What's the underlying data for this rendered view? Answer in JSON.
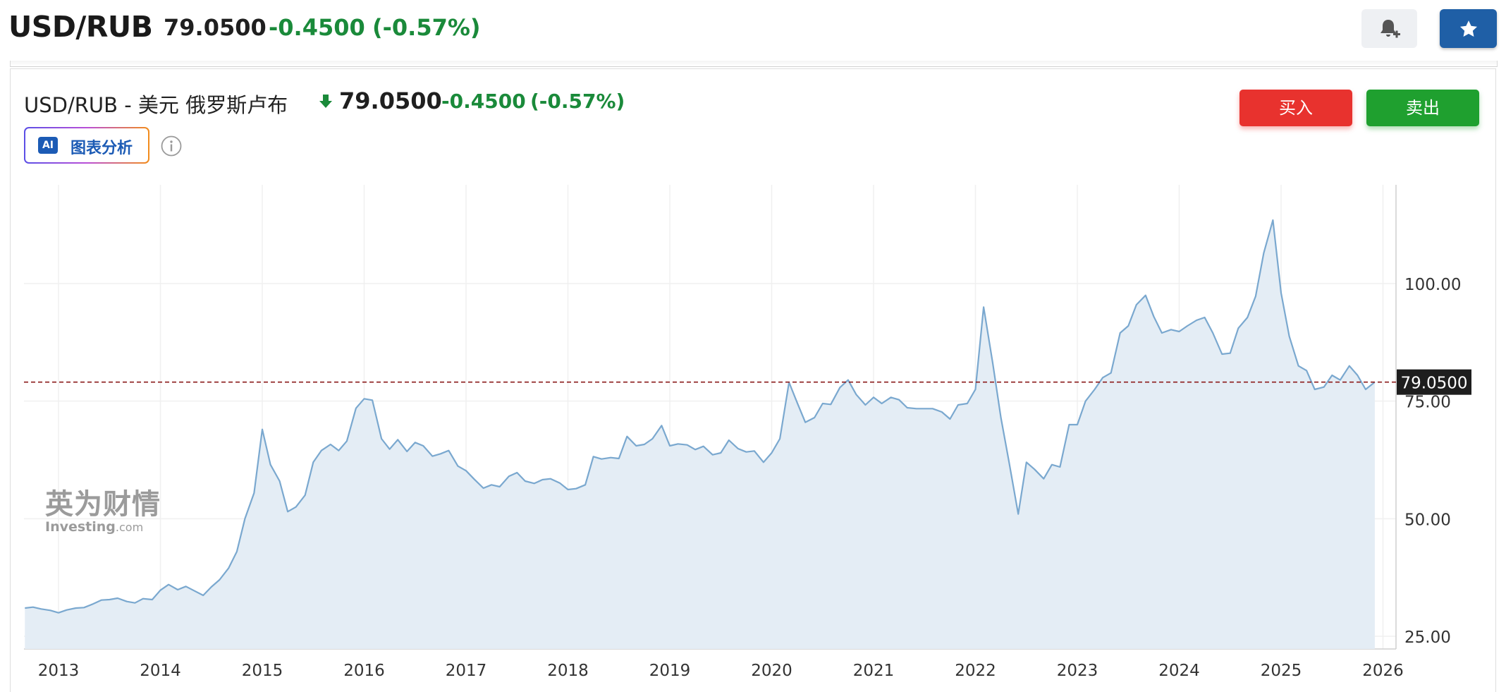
{
  "header": {
    "symbol": "USD/RUB",
    "price": "79.0500",
    "change": "-0.4500",
    "change_pct": "(-0.57%)"
  },
  "panel": {
    "title": "USD/RUB - 美元 俄罗斯卢布",
    "price": "79.0500",
    "change": "-0.4500",
    "change_pct": "(-0.57%)",
    "buy_label": "买入",
    "sell_label": "卖出",
    "ai_badge": "AI",
    "ai_label": "图表分析"
  },
  "watermark": {
    "line1": "英为财情",
    "line2": "Investing",
    "line2_suffix": ".com"
  },
  "colors": {
    "up_green": "#1a8a3a",
    "buy_red": "#e8322e",
    "sell_green": "#1fa02f",
    "star_blue": "#1f5fa6",
    "line": "#7aa8cf",
    "area": "#e4edf5"
  },
  "icons": {
    "bell": "bell-plus-icon",
    "star": "star-icon",
    "arrow": "arrow-down-icon",
    "info": "info-icon"
  },
  "chart_data": {
    "type": "area",
    "y_ticks": [
      "100.00",
      "75.00",
      "50.00",
      "25.00"
    ],
    "x_ticks": [
      "2013",
      "2014",
      "2015",
      "2016",
      "2017",
      "2018",
      "2019",
      "2020",
      "2021",
      "2022",
      "2023",
      "2024",
      "2025",
      "2026"
    ],
    "ylim": [
      22.5,
      120
    ],
    "current_value": 79.05,
    "current_label": "79.0500",
    "series": [
      {
        "points": [
          [
            2012.67,
            31.0
          ],
          [
            2012.75,
            31.2
          ],
          [
            2012.83,
            30.8
          ],
          [
            2012.92,
            30.5
          ],
          [
            2013.0,
            30.0
          ],
          [
            2013.08,
            30.6
          ],
          [
            2013.17,
            31.0
          ],
          [
            2013.25,
            31.1
          ],
          [
            2013.33,
            31.8
          ],
          [
            2013.42,
            32.7
          ],
          [
            2013.5,
            32.8
          ],
          [
            2013.58,
            33.1
          ],
          [
            2013.67,
            32.4
          ],
          [
            2013.75,
            32.1
          ],
          [
            2013.83,
            33.0
          ],
          [
            2013.92,
            32.8
          ],
          [
            2014.0,
            34.8
          ],
          [
            2014.08,
            36.0
          ],
          [
            2014.17,
            34.9
          ],
          [
            2014.25,
            35.6
          ],
          [
            2014.33,
            34.7
          ],
          [
            2014.42,
            33.7
          ],
          [
            2014.5,
            35.5
          ],
          [
            2014.58,
            37.0
          ],
          [
            2014.67,
            39.5
          ],
          [
            2014.75,
            43.0
          ],
          [
            2014.83,
            50.0
          ],
          [
            2014.92,
            55.5
          ],
          [
            2015.0,
            69.0
          ],
          [
            2015.08,
            61.5
          ],
          [
            2015.17,
            58.0
          ],
          [
            2015.25,
            51.5
          ],
          [
            2015.33,
            52.5
          ],
          [
            2015.42,
            55.0
          ],
          [
            2015.5,
            62.0
          ],
          [
            2015.58,
            64.5
          ],
          [
            2015.67,
            65.8
          ],
          [
            2015.75,
            64.5
          ],
          [
            2015.83,
            66.5
          ],
          [
            2015.92,
            73.5
          ],
          [
            2016.0,
            75.5
          ],
          [
            2016.08,
            75.2
          ],
          [
            2016.17,
            67.0
          ],
          [
            2016.25,
            64.8
          ],
          [
            2016.33,
            66.8
          ],
          [
            2016.42,
            64.3
          ],
          [
            2016.5,
            66.2
          ],
          [
            2016.58,
            65.5
          ],
          [
            2016.67,
            63.3
          ],
          [
            2016.75,
            63.8
          ],
          [
            2016.83,
            64.5
          ],
          [
            2016.92,
            61.2
          ],
          [
            2017.0,
            60.2
          ],
          [
            2017.08,
            58.4
          ],
          [
            2017.17,
            56.5
          ],
          [
            2017.25,
            57.2
          ],
          [
            2017.33,
            56.8
          ],
          [
            2017.42,
            59.0
          ],
          [
            2017.5,
            59.8
          ],
          [
            2017.58,
            58.0
          ],
          [
            2017.67,
            57.5
          ],
          [
            2017.75,
            58.3
          ],
          [
            2017.83,
            58.5
          ],
          [
            2017.92,
            57.6
          ],
          [
            2018.0,
            56.2
          ],
          [
            2018.08,
            56.4
          ],
          [
            2018.17,
            57.2
          ],
          [
            2018.25,
            63.2
          ],
          [
            2018.33,
            62.7
          ],
          [
            2018.42,
            63.0
          ],
          [
            2018.5,
            62.8
          ],
          [
            2018.58,
            67.5
          ],
          [
            2018.67,
            65.5
          ],
          [
            2018.75,
            65.8
          ],
          [
            2018.83,
            67.0
          ],
          [
            2018.92,
            69.8
          ],
          [
            2019.0,
            65.5
          ],
          [
            2019.08,
            65.9
          ],
          [
            2019.17,
            65.7
          ],
          [
            2019.25,
            64.7
          ],
          [
            2019.33,
            65.4
          ],
          [
            2019.42,
            63.6
          ],
          [
            2019.5,
            64.0
          ],
          [
            2019.58,
            66.7
          ],
          [
            2019.67,
            64.9
          ],
          [
            2019.75,
            64.2
          ],
          [
            2019.83,
            64.4
          ],
          [
            2019.92,
            62.0
          ],
          [
            2020.0,
            64.0
          ],
          [
            2020.08,
            67.0
          ],
          [
            2020.17,
            79.0
          ],
          [
            2020.25,
            74.7
          ],
          [
            2020.33,
            70.5
          ],
          [
            2020.42,
            71.5
          ],
          [
            2020.5,
            74.5
          ],
          [
            2020.58,
            74.3
          ],
          [
            2020.67,
            77.9
          ],
          [
            2020.75,
            79.5
          ],
          [
            2020.83,
            76.4
          ],
          [
            2020.92,
            74.2
          ],
          [
            2021.0,
            75.8
          ],
          [
            2021.08,
            74.5
          ],
          [
            2021.17,
            75.8
          ],
          [
            2021.25,
            75.3
          ],
          [
            2021.33,
            73.6
          ],
          [
            2021.42,
            73.4
          ],
          [
            2021.5,
            73.4
          ],
          [
            2021.58,
            73.4
          ],
          [
            2021.67,
            72.7
          ],
          [
            2021.75,
            71.2
          ],
          [
            2021.83,
            74.2
          ],
          [
            2021.92,
            74.5
          ],
          [
            2022.0,
            77.5
          ],
          [
            2022.08,
            95.0
          ],
          [
            2022.17,
            83.0
          ],
          [
            2022.25,
            71.5
          ],
          [
            2022.33,
            62.0
          ],
          [
            2022.42,
            51.0
          ],
          [
            2022.5,
            62.0
          ],
          [
            2022.58,
            60.5
          ],
          [
            2022.67,
            58.5
          ],
          [
            2022.75,
            61.5
          ],
          [
            2022.83,
            61.0
          ],
          [
            2022.92,
            70.0
          ],
          [
            2023.0,
            70.0
          ],
          [
            2023.08,
            75.0
          ],
          [
            2023.17,
            77.5
          ],
          [
            2023.25,
            80.0
          ],
          [
            2023.33,
            81.0
          ],
          [
            2023.42,
            89.5
          ],
          [
            2023.5,
            91.0
          ],
          [
            2023.58,
            95.5
          ],
          [
            2023.67,
            97.5
          ],
          [
            2023.75,
            93.0
          ],
          [
            2023.83,
            89.5
          ],
          [
            2023.92,
            90.2
          ],
          [
            2024.0,
            89.8
          ],
          [
            2024.08,
            91.0
          ],
          [
            2024.17,
            92.2
          ],
          [
            2024.25,
            92.8
          ],
          [
            2024.33,
            89.5
          ],
          [
            2024.42,
            85.0
          ],
          [
            2024.5,
            85.2
          ],
          [
            2024.58,
            90.5
          ],
          [
            2024.67,
            92.8
          ],
          [
            2024.75,
            97.3
          ],
          [
            2024.83,
            106.5
          ],
          [
            2024.92,
            113.5
          ],
          [
            2025.0,
            98.0
          ],
          [
            2025.08,
            88.8
          ],
          [
            2025.17,
            82.5
          ],
          [
            2025.25,
            81.5
          ],
          [
            2025.33,
            77.5
          ],
          [
            2025.42,
            78.0
          ],
          [
            2025.5,
            80.5
          ],
          [
            2025.58,
            79.5
          ],
          [
            2025.67,
            82.5
          ],
          [
            2025.75,
            80.5
          ],
          [
            2025.83,
            77.5
          ],
          [
            2025.92,
            79.05
          ]
        ]
      }
    ]
  }
}
